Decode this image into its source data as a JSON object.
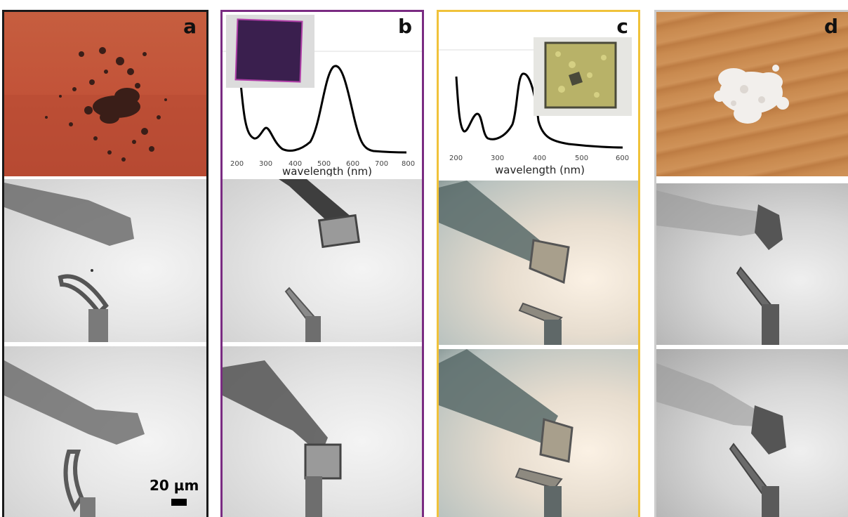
{
  "panels": {
    "a": {
      "letter": "a",
      "border_color": "#1a1a1a",
      "scalebar_label": "20 µm"
    },
    "b": {
      "letter": "b",
      "border_color": "#7a2b82",
      "spectrum": {
        "xlabel": "wavelength (nm)",
        "ticks": [
          "200",
          "300",
          "400",
          "500",
          "600",
          "700",
          "800"
        ]
      }
    },
    "c": {
      "letter": "c",
      "border_color": "#f0c23a",
      "spectrum": {
        "xlabel": "wavelength (nm)",
        "ticks": [
          "200",
          "300",
          "400",
          "500",
          "600"
        ]
      }
    },
    "d": {
      "letter": "d",
      "border_color": "#cccccc"
    }
  },
  "colors": {
    "orange_background": "#c4563a",
    "wood_background": "#c98a4f",
    "crystal_purple": "#3a1f4e"
  }
}
